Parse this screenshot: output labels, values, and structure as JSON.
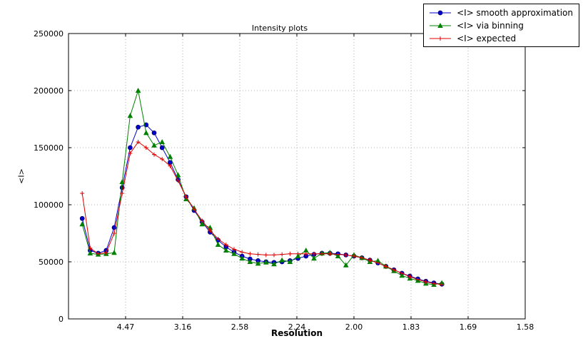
{
  "figure": {
    "title": "Intensity plots",
    "xlabel": "Resolution",
    "ylabel": "<I>"
  },
  "legend": {
    "items": [
      {
        "label": "<I> smooth approximation",
        "marker": "circle",
        "color": "#0000cc"
      },
      {
        "label": "<I> via binning",
        "marker": "triangle",
        "color": "#008000"
      },
      {
        "label": "<I> expected",
        "marker": "plus",
        "color": "#e00000"
      }
    ]
  },
  "chart_data": {
    "type": "line",
    "title": "Intensity plots",
    "xlabel": "Resolution",
    "ylabel": "<I>",
    "grid": true,
    "legend_position": "upper right, outside axes",
    "x_axis": {
      "range": [
        0,
        0.4
      ],
      "tick_positions": [
        0.05,
        0.1,
        0.15,
        0.2,
        0.25,
        0.3,
        0.35,
        0.4
      ],
      "tick_labels": [
        "4.47",
        "3.16",
        "2.58",
        "2.24",
        "2.00",
        "1.83",
        "1.69",
        "1.58"
      ]
    },
    "y_axis": {
      "range": [
        0,
        250000
      ],
      "tick_positions": [
        0,
        50000,
        100000,
        150000,
        200000,
        250000
      ],
      "tick_labels": [
        "0",
        "50000",
        "100000",
        "150000",
        "200000",
        "250000"
      ]
    },
    "x": [
      0.012,
      0.019,
      0.026,
      0.033,
      0.04,
      0.047,
      0.054,
      0.061,
      0.068,
      0.075,
      0.082,
      0.089,
      0.096,
      0.103,
      0.11,
      0.117,
      0.124,
      0.131,
      0.138,
      0.145,
      0.152,
      0.159,
      0.166,
      0.173,
      0.18,
      0.187,
      0.194,
      0.201,
      0.208,
      0.215,
      0.222,
      0.229,
      0.236,
      0.243,
      0.25,
      0.257,
      0.264,
      0.271,
      0.278,
      0.285,
      0.292,
      0.299,
      0.306,
      0.313,
      0.32,
      0.327
    ],
    "series": [
      {
        "name": "<I> smooth approximation",
        "color": "#0000cc",
        "marker": "circle",
        "values": [
          88000,
          60000,
          57500,
          60000,
          80000,
          115000,
          150000,
          168000,
          170000,
          163000,
          150000,
          137000,
          122000,
          107000,
          95000,
          85000,
          76000,
          69000,
          63000,
          58500,
          55000,
          52500,
          51000,
          50000,
          49500,
          50000,
          51000,
          53000,
          55000,
          56500,
          57500,
          57500,
          57000,
          56000,
          55000,
          53500,
          51500,
          49000,
          46000,
          43000,
          40000,
          37500,
          35000,
          33000,
          31500,
          30500
        ]
      },
      {
        "name": "<I> via binning",
        "color": "#008000",
        "marker": "triangle",
        "values": [
          83000,
          57500,
          56500,
          57000,
          58000,
          120000,
          178000,
          200000,
          163000,
          152000,
          155000,
          142000,
          126000,
          105000,
          97000,
          83000,
          80000,
          65000,
          60000,
          57000,
          53000,
          50000,
          48500,
          49500,
          48000,
          51500,
          50000,
          55000,
          60000,
          53000,
          57500,
          58000,
          55000,
          47000,
          56000,
          53500,
          50000,
          51000,
          46000,
          42000,
          38000,
          35500,
          33500,
          31000,
          30000,
          31500
        ]
      },
      {
        "name": "<I> expected",
        "color": "#e00000",
        "marker": "plus",
        "values": [
          110000,
          62000,
          57000,
          58000,
          75000,
          110000,
          145000,
          155000,
          150000,
          144000,
          140000,
          134000,
          121000,
          107000,
          96000,
          86000,
          77500,
          70000,
          65000,
          61000,
          58500,
          57000,
          56500,
          56000,
          56000,
          56500,
          57000,
          57000,
          57000,
          57000,
          57000,
          57000,
          56500,
          56000,
          55000,
          53500,
          51500,
          49000,
          46000,
          43000,
          40000,
          37000,
          34500,
          32500,
          31000,
          30000
        ]
      }
    ]
  }
}
